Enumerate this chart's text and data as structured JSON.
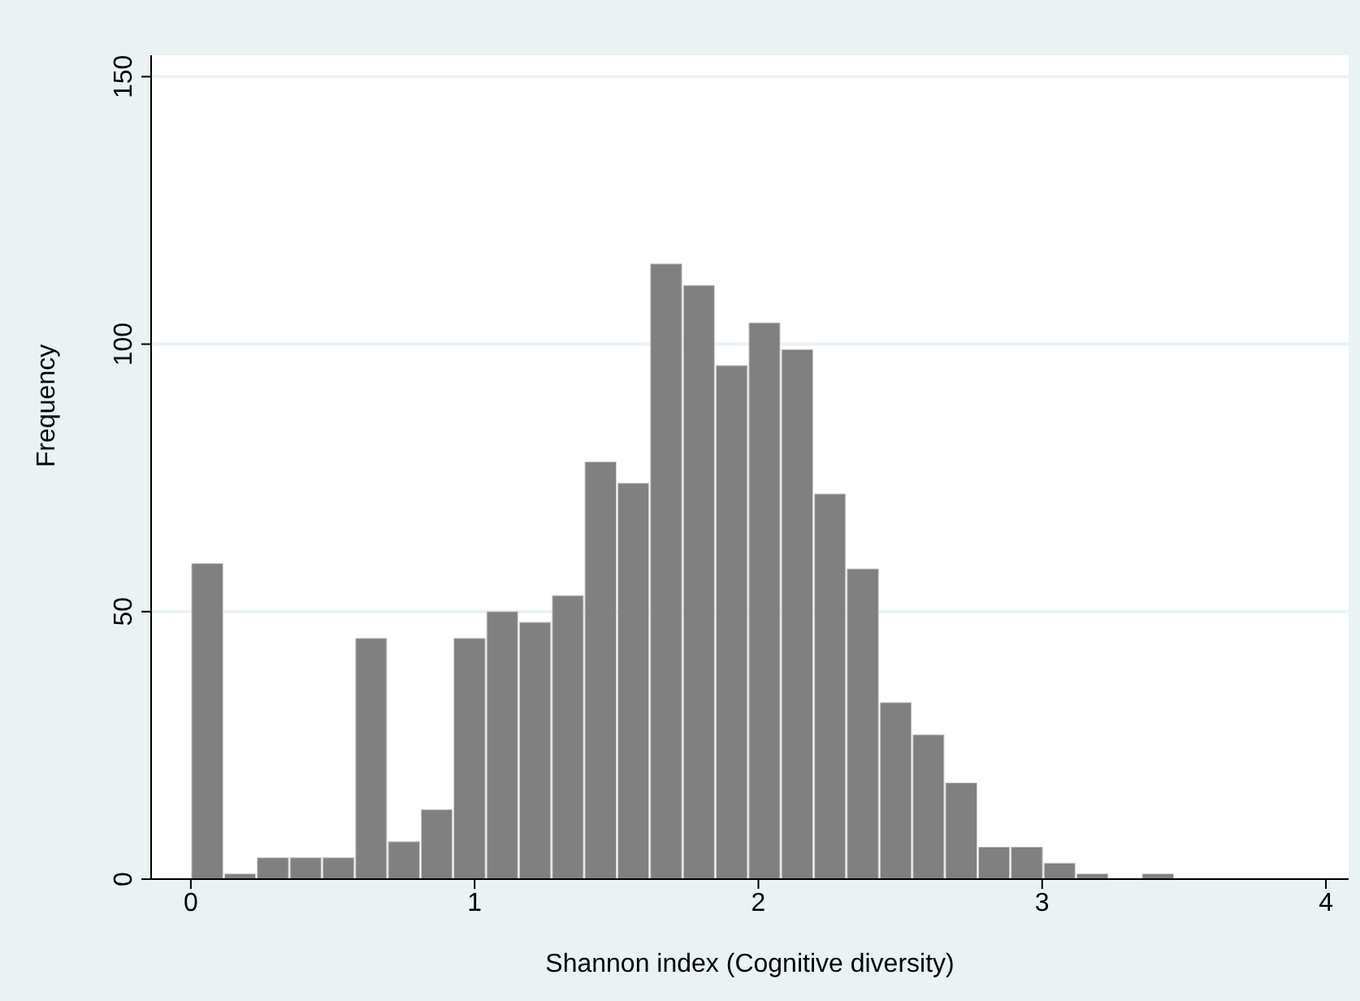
{
  "chart_data": {
    "type": "histogram",
    "xlabel": "Shannon index (Cognitive diversity)",
    "ylabel": "Frequency",
    "bins": [
      0,
      0.116,
      0.231,
      0.347,
      0.462,
      0.578,
      0.693,
      0.809,
      0.924,
      1.04,
      1.155,
      1.271,
      1.386,
      1.502,
      1.617,
      1.733,
      1.848,
      1.964,
      2.079,
      2.195,
      2.31,
      2.426,
      2.542,
      2.657,
      2.773,
      2.888,
      3.004,
      3.119,
      3.235,
      3.35,
      3.466
    ],
    "values": [
      59,
      1,
      4,
      4,
      4,
      45,
      7,
      13,
      45,
      50,
      48,
      53,
      78,
      74,
      115,
      111,
      96,
      104,
      99,
      72,
      58,
      33,
      27,
      18,
      6,
      6,
      3,
      1,
      0,
      1
    ],
    "color": "#808080",
    "xlim": [
      -0.14,
      4.08
    ],
    "ylim": [
      0,
      154
    ],
    "xticks": [
      0,
      1,
      2,
      3,
      4
    ],
    "yticks": [
      0,
      50,
      100,
      150
    ],
    "grid": "y"
  }
}
